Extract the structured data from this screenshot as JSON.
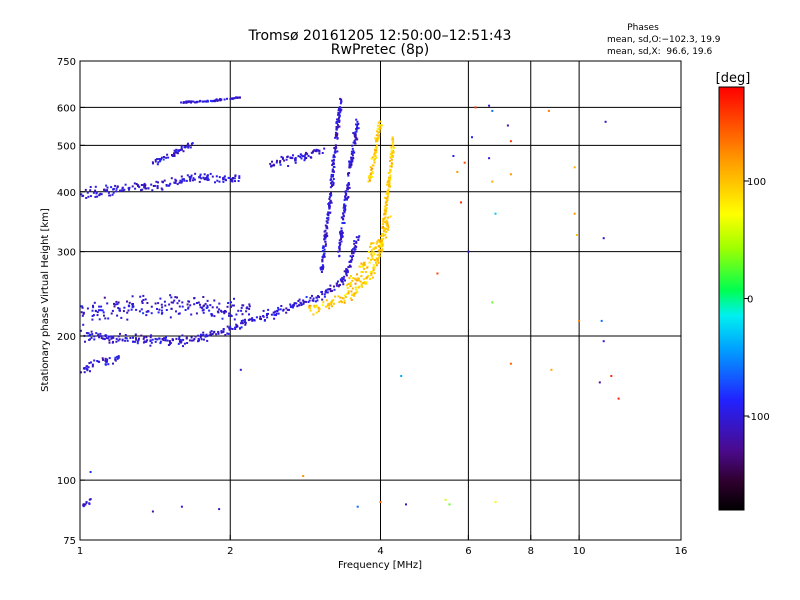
{
  "chart_data": {
    "type": "scatter",
    "title": "Tromsø 20161205 12:50:00–12:51:43",
    "subtitle": "RwPretec (8p)",
    "xlabel": "Frequency [MHz]",
    "ylabel": "Stationary phase Virtual Height [km]",
    "x_scale": "log",
    "y_scale": "log",
    "xlim": [
      1,
      16
    ],
    "ylim": [
      75,
      750
    ],
    "x_ticks": [
      1,
      2,
      4,
      6,
      8,
      10,
      16
    ],
    "y_ticks": [
      75,
      100,
      200,
      300,
      400,
      500,
      600,
      750
    ],
    "x_grid": [
      2,
      4,
      6,
      8,
      10
    ],
    "y_grid": [
      100,
      200,
      300,
      400,
      500,
      600
    ],
    "stats": {
      "title": "Phases",
      "o_line": "mean, sd,O:−102.3, 19.9",
      "x_line": "mean, sd,X:  96.6, 19.6"
    },
    "colorbar": {
      "label": "[deg]",
      "range": [
        -180,
        180
      ],
      "ticks": [
        100,
        0,
        -100
      ]
    },
    "series": [
      {
        "mode": "O",
        "phase_mean": -102.3,
        "phase_sd": 19.9,
        "segments": [
          {
            "f": [
              1.0,
              1.2,
              1.4,
              1.6,
              1.8,
              2.0,
              2.2,
              2.5,
              2.8,
              3.0,
              3.2,
              3.4,
              3.5,
              3.6
            ],
            "h": [
              200,
              198,
              196,
              196,
              200,
              208,
              215,
              225,
              235,
              240,
              250,
              265,
              290,
              320
            ],
            "spread": 7
          },
          {
            "f": [
              1.0,
              1.2,
              1.4,
              1.6,
              1.8,
              2.0,
              2.2
            ],
            "h": [
              222,
              230,
              232,
              235,
              230,
              225,
              228
            ],
            "spread": 18
          },
          {
            "f": [
              1.0,
              1.1,
              1.2
            ],
            "h": [
              170,
              175,
              180
            ],
            "spread": 6
          },
          {
            "f": [
              1.0,
              1.1,
              1.3,
              1.5,
              1.7,
              1.9,
              2.1
            ],
            "h": [
              395,
              400,
              410,
              415,
              430,
              425,
              425
            ],
            "spread": 14
          },
          {
            "f": [
              1.4,
              1.55,
              1.7
            ],
            "h": [
              460,
              480,
              510
            ],
            "spread": 10
          },
          {
            "f": [
              1.6,
              1.8,
              2.0,
              2.1
            ],
            "h": [
              615,
              618,
              625,
              630
            ],
            "spread": 4
          },
          {
            "f": [
              2.4,
              2.7,
              2.9,
              3.1
            ],
            "h": [
              455,
              470,
              480,
              490
            ],
            "spread": 14
          },
          {
            "f": [
              3.05,
              3.1,
              3.15,
              3.2,
              3.25,
              3.3,
              3.35
            ],
            "h": [
              270,
              320,
              360,
              420,
              500,
              580,
              630
            ],
            "spread": 8
          },
          {
            "f": [
              3.3,
              3.4,
              3.5,
              3.6
            ],
            "h": [
              300,
              380,
              470,
              560
            ],
            "spread": 20
          },
          {
            "f": [
              1.0,
              1.05
            ],
            "h": [
              88,
              90
            ],
            "spread": 2
          }
        ]
      },
      {
        "mode": "X",
        "phase_mean": 96.6,
        "phase_sd": 19.6,
        "segments": [
          {
            "f": [
              2.85,
              3.0,
              3.2,
              3.4,
              3.6,
              3.8,
              3.9,
              4.0,
              4.05,
              4.1,
              4.15,
              4.2,
              4.25
            ],
            "h": [
              228,
              230,
              235,
              240,
              250,
              265,
              280,
              300,
              330,
              370,
              410,
              460,
              520
            ],
            "spread": 8
          },
          {
            "f": [
              3.4,
              3.6,
              3.8,
              4.0,
              4.2
            ],
            "h": [
              250,
              265,
              290,
              320,
              360
            ],
            "spread": 18
          },
          {
            "f": [
              3.8,
              3.9,
              4.0
            ],
            "h": [
              420,
              480,
              560
            ],
            "spread": 16
          }
        ]
      }
    ],
    "sparse_points": [
      {
        "f": 5.6,
        "h": 475,
        "phase": -90
      },
      {
        "f": 5.9,
        "h": 460,
        "phase": 150
      },
      {
        "f": 6.2,
        "h": 600,
        "phase": 160
      },
      {
        "f": 6.6,
        "h": 605,
        "phase": -110
      },
      {
        "f": 6.7,
        "h": 590,
        "phase": -60
      },
      {
        "f": 7.2,
        "h": 550,
        "phase": -120
      },
      {
        "f": 7.3,
        "h": 510,
        "phase": 160
      },
      {
        "f": 6.6,
        "h": 470,
        "phase": -100
      },
      {
        "f": 6.7,
        "h": 420,
        "phase": 110
      },
      {
        "f": 6.8,
        "h": 360,
        "phase": -30
      },
      {
        "f": 7.3,
        "h": 435,
        "phase": 120
      },
      {
        "f": 9.8,
        "h": 450,
        "phase": 110
      },
      {
        "f": 9.8,
        "h": 360,
        "phase": 120
      },
      {
        "f": 9.9,
        "h": 325,
        "phase": 100
      },
      {
        "f": 11.2,
        "h": 320,
        "phase": -110
      },
      {
        "f": 11.3,
        "h": 560,
        "phase": -110
      },
      {
        "f": 5.2,
        "h": 270,
        "phase": 150
      },
      {
        "f": 6.7,
        "h": 235,
        "phase": 30
      },
      {
        "f": 10.0,
        "h": 215,
        "phase": 130
      },
      {
        "f": 11.1,
        "h": 215,
        "phase": -60
      },
      {
        "f": 11.2,
        "h": 195,
        "phase": -100
      },
      {
        "f": 11.0,
        "h": 160,
        "phase": -120
      },
      {
        "f": 11.6,
        "h": 165,
        "phase": 160
      },
      {
        "f": 8.8,
        "h": 170,
        "phase": 110
      },
      {
        "f": 7.3,
        "h": 175,
        "phase": 140
      },
      {
        "f": 4.4,
        "h": 165,
        "phase": -40
      },
      {
        "f": 2.1,
        "h": 170,
        "phase": -110
      },
      {
        "f": 2.8,
        "h": 102,
        "phase": 120
      },
      {
        "f": 3.6,
        "h": 88,
        "phase": -60
      },
      {
        "f": 4.0,
        "h": 90,
        "phase": 140
      },
      {
        "f": 4.5,
        "h": 89,
        "phase": -110
      },
      {
        "f": 5.4,
        "h": 91,
        "phase": 60
      },
      {
        "f": 5.5,
        "h": 89,
        "phase": 30
      },
      {
        "f": 6.8,
        "h": 90,
        "phase": 70
      },
      {
        "f": 1.05,
        "h": 104,
        "phase": -80
      },
      {
        "f": 1.4,
        "h": 86,
        "phase": -120
      },
      {
        "f": 1.6,
        "h": 88,
        "phase": -100
      },
      {
        "f": 1.9,
        "h": 87,
        "phase": -110
      },
      {
        "f": 12.0,
        "h": 148,
        "phase": 170
      },
      {
        "f": 6.1,
        "h": 520,
        "phase": -90
      },
      {
        "f": 8.7,
        "h": 590,
        "phase": 130
      },
      {
        "f": 5.8,
        "h": 380,
        "phase": 160
      },
      {
        "f": 5.7,
        "h": 440,
        "phase": 120
      },
      {
        "f": 6.0,
        "h": 300,
        "phase": -100
      }
    ]
  }
}
